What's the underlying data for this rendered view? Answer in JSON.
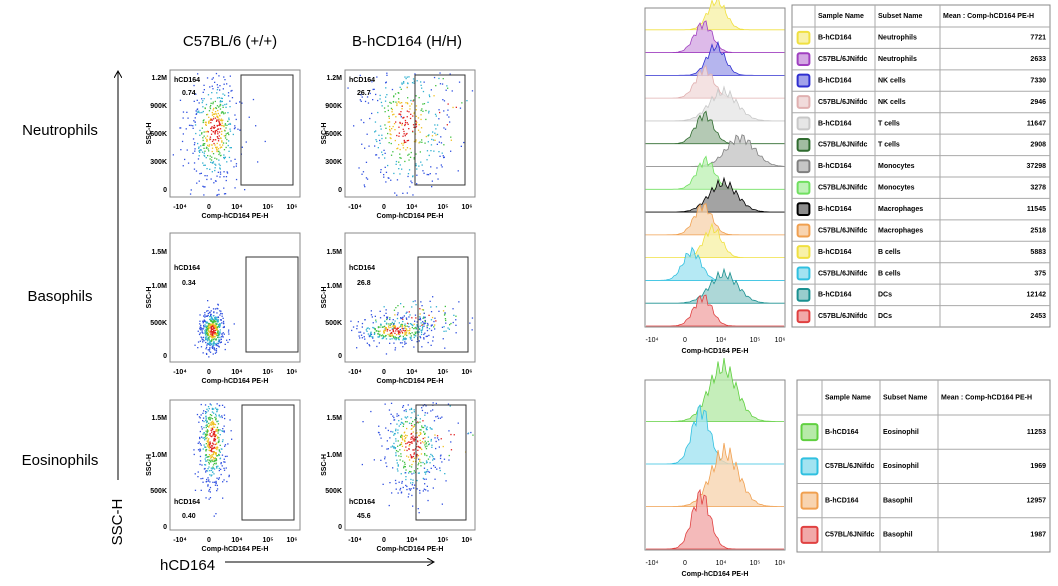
{
  "columns": [
    "C57BL/6 (+/+)",
    "B-hCD164 (H/H)"
  ],
  "axis_labels": {
    "y": "SSC-H",
    "x": "hCD164"
  },
  "dotplot_axes": {
    "x_label": "Comp-hCD164 PE-H",
    "y_label": "SSC-H",
    "x_ticks": [
      "-10⁴",
      "0",
      "10⁴",
      "10⁵",
      "10⁶"
    ]
  },
  "rows": [
    {
      "label": "Neutrophils",
      "yticks": [
        "1.2M",
        "900K",
        "600K",
        "300K",
        "0"
      ],
      "plots": [
        {
          "gate": "hCD164",
          "percent": "0.74"
        },
        {
          "gate": "hCD164",
          "percent": "26.7"
        }
      ]
    },
    {
      "label": "Basophils",
      "yticks": [
        "1.5M",
        "1.0M",
        "500K",
        "0"
      ],
      "plots": [
        {
          "gate": "hCD164",
          "percent": "0.34"
        },
        {
          "gate": "hCD164",
          "percent": "26.8"
        }
      ]
    },
    {
      "label": "Eosinophils",
      "yticks": [
        "1.5M",
        "1.0M",
        "500K",
        "0"
      ],
      "plots": [
        {
          "gate": "hCD164",
          "percent": "0.40"
        },
        {
          "gate": "hCD164",
          "percent": "45.6"
        }
      ]
    }
  ],
  "histogram_axes": {
    "x_label": "Comp-hCD164 PE-H",
    "x_ticks": [
      "-10⁴",
      "0",
      "10⁴",
      "10⁵",
      "10⁶"
    ]
  },
  "table_top": {
    "header": [
      "Sample Name",
      "Subset Name",
      "Mean : Comp-hCD164 PE-H"
    ],
    "rows": [
      {
        "sample": "B-hCD164",
        "subset": "Neutrophils",
        "mean": 7721,
        "color": "#f0e040"
      },
      {
        "sample": "C57BL/6JNifdc",
        "subset": "Neutrophils",
        "mean": 2633,
        "color": "#a040c0"
      },
      {
        "sample": "B-hCD164",
        "subset": "NK cells",
        "mean": 7330,
        "color": "#3030d0"
      },
      {
        "sample": "C57BL/6JNifdc",
        "subset": "NK cells",
        "mean": 2946,
        "color": "#e0b0b0"
      },
      {
        "sample": "B-hCD164",
        "subset": "T cells",
        "mean": 11647,
        "color": "#c8c8c8"
      },
      {
        "sample": "C57BL/6JNifdc",
        "subset": "T cells",
        "mean": 2908,
        "color": "#2f6b2f"
      },
      {
        "sample": "B-hCD164",
        "subset": "Monocytes",
        "mean": 37298,
        "color": "#808080"
      },
      {
        "sample": "C57BL/6JNifdc",
        "subset": "Monocytes",
        "mean": 3278,
        "color": "#70e060"
      },
      {
        "sample": "B-hCD164",
        "subset": "Macrophages",
        "mean": 11545,
        "color": "#000000"
      },
      {
        "sample": "C57BL/6JNifdc",
        "subset": "Macrophages",
        "mean": 2518,
        "color": "#f0a050"
      },
      {
        "sample": "B-hCD164",
        "subset": "B cells",
        "mean": 5883,
        "color": "#f0e040"
      },
      {
        "sample": "C57BL/6JNifdc",
        "subset": "B cells",
        "mean": 375,
        "color": "#30c0e0"
      },
      {
        "sample": "B-hCD164",
        "subset": "DCs",
        "mean": 12142,
        "color": "#1a9090"
      },
      {
        "sample": "C57BL/6JNifdc",
        "subset": "DCs",
        "mean": 2453,
        "color": "#e04040"
      }
    ]
  },
  "table_bottom": {
    "header": [
      "Sample Name",
      "Subset Name",
      "Mean : Comp-hCD164 PE-H"
    ],
    "rows": [
      {
        "sample": "B-hCD164",
        "subset": "Eosinophil",
        "mean": 11253,
        "color": "#60d040"
      },
      {
        "sample": "C57BL/6JNifdc",
        "subset": "Eosinophil",
        "mean": 1969,
        "color": "#30c0e0"
      },
      {
        "sample": "B-hCD164",
        "subset": "Basophil",
        "mean": 12957,
        "color": "#f0a050"
      },
      {
        "sample": "C57BL/6JNifdc",
        "subset": "Basophil",
        "mean": 1987,
        "color": "#e04040"
      }
    ]
  }
}
